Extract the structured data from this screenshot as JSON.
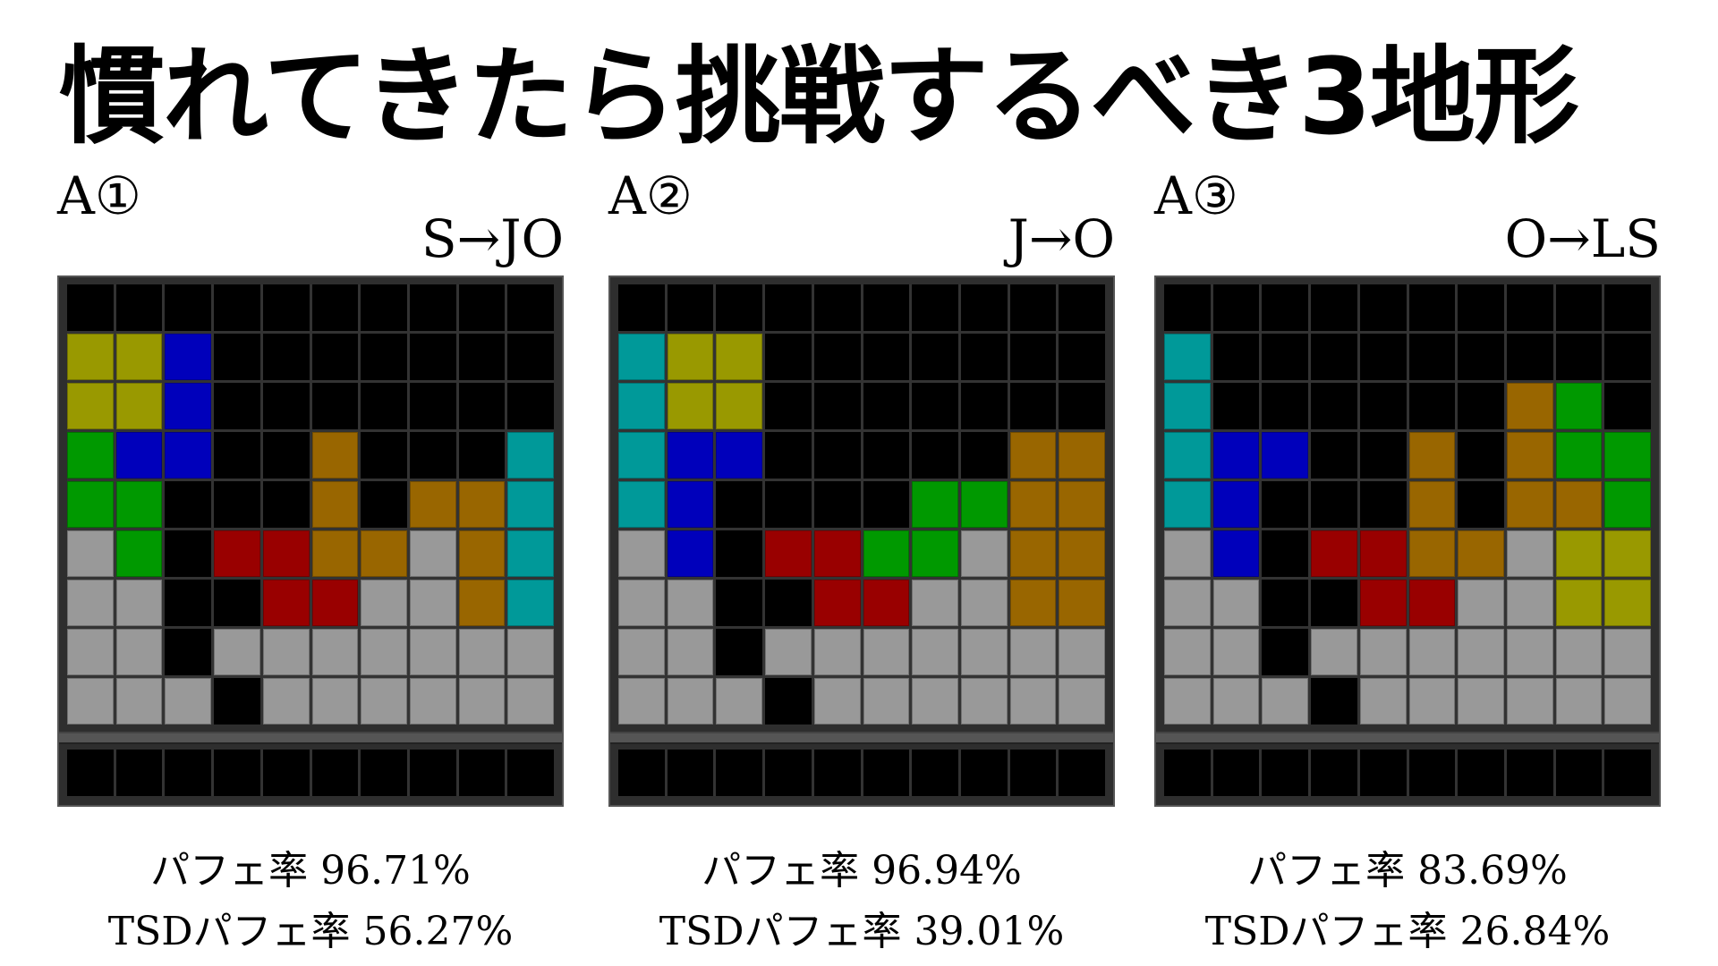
{
  "title": "慣れてきたら挑戦するべき3地形",
  "colors": {
    "Y": "#999900",
    "B": "#0000bb",
    "G": "#009900",
    "O": "#996600",
    "C": "#009999",
    "R": "#990000",
    "g": "#999999",
    ".": "#000000"
  },
  "panels": [
    {
      "label": "A①",
      "transition": "S→JO",
      "perfect_rate": "パフェ率 96.71%",
      "tsd_perfect_rate": "TSDパフェ率 56.27%",
      "board": [
        "..........",
        "YYB.......",
        "YYB.......",
        "GBB..O...C",
        "GG...O.OOC",
        "gG.RROOgOC",
        "gg..RRggOC",
        "gg.ggggggg",
        "ggg.gggggg"
      ],
      "hold_row": ".........."
    },
    {
      "label": "A②",
      "transition": "J→O",
      "perfect_rate": "パフェ率 96.94%",
      "tsd_perfect_rate": "TSDパフェ率 39.01%",
      "board": [
        "..........",
        "CYY.......",
        "CYY.......",
        "CBB.....OO",
        "CB....GGOO",
        "gB.RRGGgOO",
        "gg..RRggOO",
        "gg.ggggggg",
        "ggg.gggggg"
      ],
      "hold_row": ".........."
    },
    {
      "label": "A③",
      "transition": "O→LS",
      "perfect_rate": "パフェ率 83.69%",
      "tsd_perfect_rate": "TSDパフェ率 26.84%",
      "board": [
        "..........",
        "C.........",
        "C......OG.",
        "CBB..O.OGG",
        "CB...O.OOG",
        "gB.RROOgYY",
        "gg..RRggYY",
        "gg.ggggggg",
        "ggg.gggggg"
      ],
      "hold_row": ".........."
    }
  ]
}
